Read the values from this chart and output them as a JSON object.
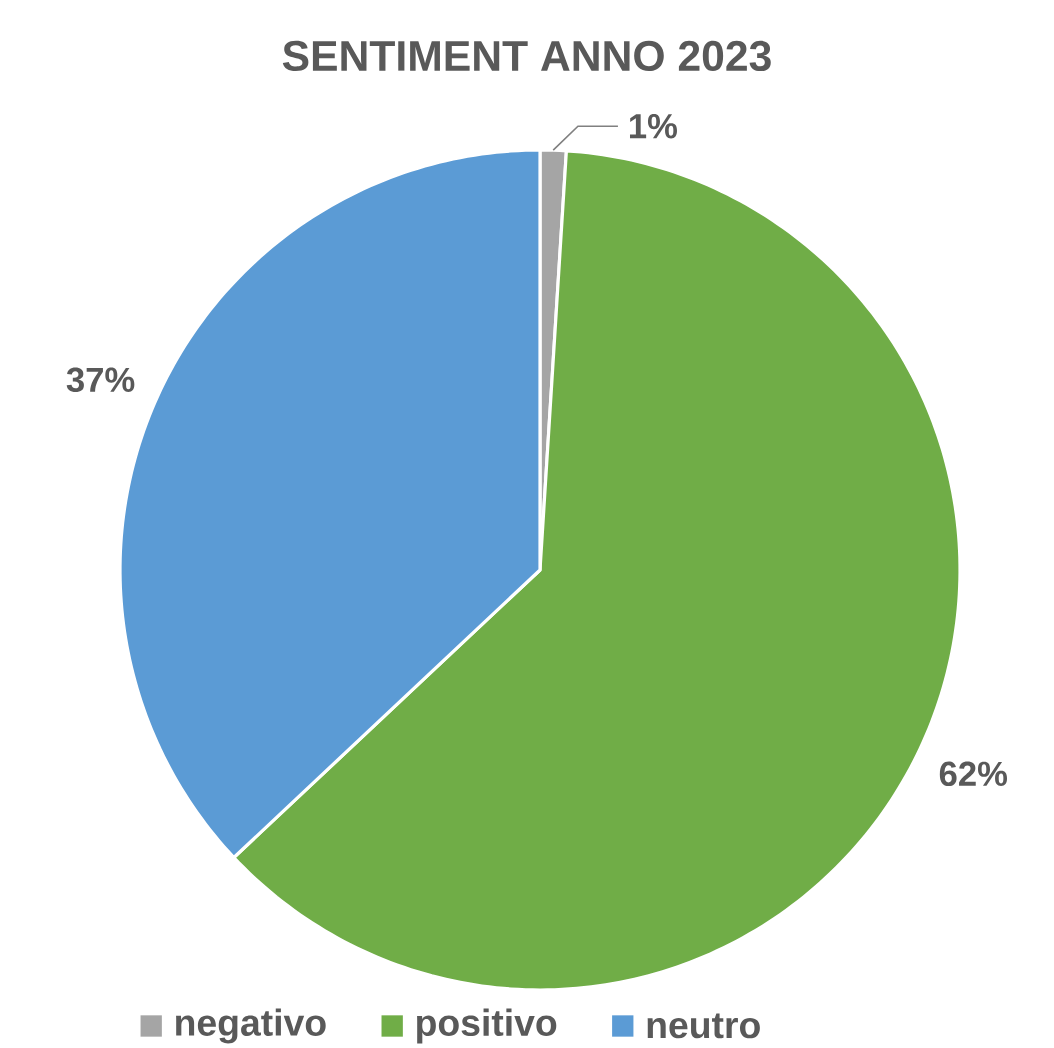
{
  "chart_data": {
    "type": "pie",
    "title": "SENTIMENT ANNO 2023",
    "categories": [
      "negativo",
      "positivo",
      "neutro"
    ],
    "values": [
      1,
      62,
      37
    ],
    "value_labels": [
      "1%",
      "62%",
      "37%"
    ],
    "colors": [
      "#a5a5a5",
      "#70ad47",
      "#5b9bd5"
    ],
    "legend": "bottom"
  }
}
